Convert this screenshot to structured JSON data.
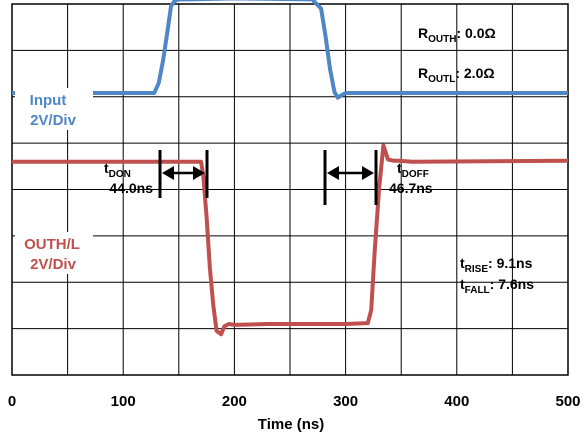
{
  "chart_data": {
    "type": "line",
    "xlabel": "Time (ns)",
    "xlim": [
      0,
      500
    ],
    "xticks": [
      "0",
      "100",
      "200",
      "300",
      "400",
      "500"
    ],
    "ylim": [
      0,
      8
    ],
    "grid": true,
    "series": [
      {
        "name": "Input",
        "scale": "2V/Div",
        "color": "#4f86c6",
        "x": [
          0,
          128,
          132,
          136,
          140,
          143,
          146,
          150,
          160,
          200,
          270,
          278,
          282,
          286,
          290,
          293,
          296,
          300,
          500
        ],
        "y": [
          6.08,
          6.08,
          6.3,
          6.8,
          7.45,
          7.95,
          8.06,
          8.1,
          8.1,
          8.12,
          8.1,
          7.9,
          7.3,
          6.6,
          6.1,
          5.98,
          6.03,
          6.08,
          6.08
        ]
      },
      {
        "name": "OUTH/L",
        "scale": "2V/Div",
        "color": "#c0504d",
        "x": [
          0,
          170,
          172,
          175,
          178,
          181,
          184,
          188,
          191,
          195,
          200,
          230,
          300,
          320,
          323,
          326,
          330,
          334,
          338,
          343,
          348,
          360,
          500
        ],
        "y": [
          4.6,
          4.6,
          4.3,
          3.4,
          2.3,
          1.5,
          0.95,
          0.88,
          1.05,
          1.1,
          1.08,
          1.1,
          1.1,
          1.12,
          1.4,
          2.6,
          4.0,
          4.95,
          4.65,
          4.62,
          4.62,
          4.6,
          4.62
        ]
      }
    ],
    "annotations": {
      "routh": {
        "sym": "R",
        "sub": "OUTH",
        "val": ": 0.0Ω"
      },
      "routl": {
        "sym": "R",
        "sub": "OUTL",
        "val": ": 2.0Ω"
      },
      "tdon": {
        "sym": "t",
        "sub": "DON",
        "val": "44.0ns"
      },
      "tdoff": {
        "sym": "t",
        "sub": "DOFF",
        "val": "46.7ns"
      },
      "trise": {
        "sym": "t",
        "sub": "RISE",
        "val": ": 9.1ns"
      },
      "tfall": {
        "sym": "t",
        "sub": "FALL",
        "val": ": 7.6ns"
      }
    }
  }
}
